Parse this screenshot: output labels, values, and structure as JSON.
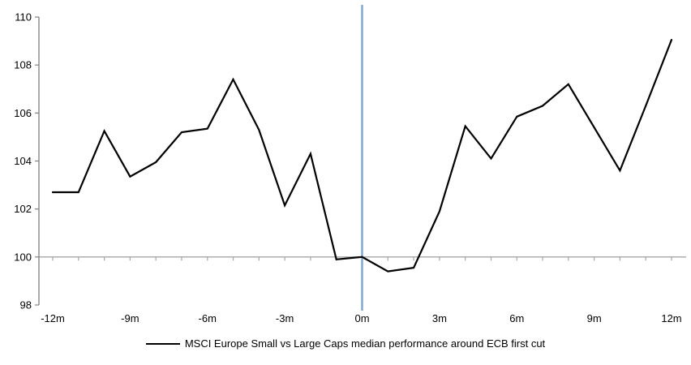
{
  "chart_data": {
    "type": "line",
    "title": "",
    "xlabel": "",
    "ylabel": "",
    "x": [
      -12,
      -11,
      -10,
      -9,
      -8,
      -7,
      -6,
      -5,
      -4,
      -3,
      -2,
      -1,
      0,
      1,
      2,
      3,
      4,
      5,
      6,
      7,
      8,
      9,
      10,
      11,
      12
    ],
    "series": [
      {
        "name": "MSCI Europe Small vs Large Caps median performance around ECB first cut",
        "values": [
          102.7,
          102.7,
          105.25,
          103.35,
          103.95,
          105.2,
          105.35,
          107.4,
          105.3,
          102.15,
          104.3,
          99.9,
          100.0,
          99.4,
          99.55,
          101.9,
          105.45,
          104.1,
          105.85,
          106.3,
          107.2,
          105.4,
          103.6,
          106.3,
          109.05
        ],
        "color": "#000000"
      }
    ],
    "xlim": [
      -12,
      12
    ],
    "ylim": [
      98,
      110
    ],
    "x_ticks": [
      -12,
      -9,
      -6,
      -3,
      0,
      3,
      6,
      9,
      12
    ],
    "x_tick_labels": [
      "-12m",
      "-9m",
      "-6m",
      "-3m",
      "0m",
      "3m",
      "6m",
      "9m",
      "12m"
    ],
    "x_minor_tick_every_month": true,
    "y_ticks": [
      110,
      108,
      106,
      104,
      102,
      100,
      98
    ],
    "y_tick_labels": [
      "110",
      "108",
      "106",
      "104",
      "102",
      "100",
      "98"
    ],
    "grid": "off",
    "reference_lines": {
      "horizontal_at": 100,
      "vertical_at": 0
    },
    "colors": {
      "series_line": "#000000",
      "event_line": "#7da6cf",
      "baseline_100": "#a6a6a6",
      "y_axis": "#808080",
      "text": "#000000"
    },
    "legend": {
      "position": "bottom-center",
      "label": "MSCI Europe Small vs Large Caps median performance around ECB first cut"
    }
  }
}
